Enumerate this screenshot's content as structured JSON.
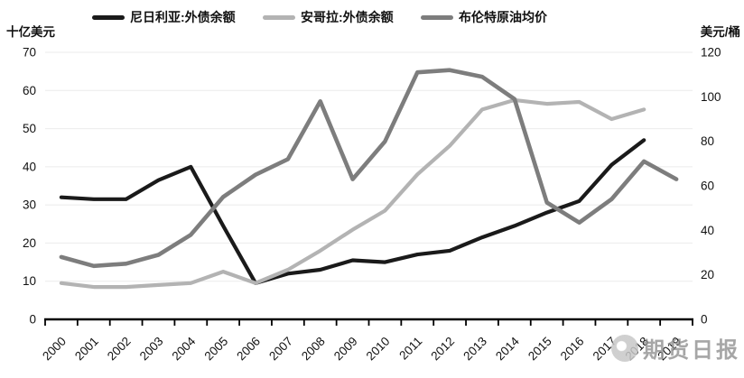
{
  "watermark": {
    "text": "期货日报"
  },
  "chart_data": {
    "type": "line",
    "title": "",
    "x": [
      2000,
      2001,
      2002,
      2003,
      2004,
      2005,
      2006,
      2007,
      2008,
      2009,
      2010,
      2011,
      2012,
      2013,
      2014,
      2015,
      2016,
      2017,
      2018,
      2019
    ],
    "left_axis": {
      "title": "十亿美元",
      "range": [
        0,
        70
      ],
      "tick_step": 10,
      "ticks": [
        0,
        10,
        20,
        30,
        40,
        50,
        60,
        70
      ]
    },
    "right_axis": {
      "title": "美元/桶",
      "range": [
        0,
        120
      ],
      "tick_step": 20,
      "ticks": [
        0,
        20,
        40,
        60,
        80,
        100,
        120
      ]
    },
    "grid": "horizontal",
    "legend_position": "top",
    "series": [
      {
        "name": "尼日利亚:外债余额",
        "axis": "left",
        "color": "#1a1a1a",
        "width": 4.2,
        "values": [
          32,
          31.5,
          31.5,
          36.5,
          40,
          24.5,
          9.5,
          12,
          13,
          15.5,
          15,
          17,
          18,
          21.5,
          24.5,
          28,
          31,
          40.5,
          47,
          null
        ]
      },
      {
        "name": "安哥拉:外债余额",
        "axis": "left",
        "color": "#b3b3b3",
        "width": 4.2,
        "values": [
          9.5,
          8.5,
          8.5,
          9,
          9.5,
          12.5,
          9.5,
          13,
          18,
          23.5,
          28.5,
          38,
          45.5,
          55,
          57.5,
          56.5,
          57,
          52.5,
          55,
          null
        ]
      },
      {
        "name": "布伦特原油均价",
        "axis": "right",
        "color": "#7d7d7d",
        "width": 4.6,
        "values": [
          28,
          24,
          25,
          29,
          38,
          55,
          65,
          72,
          98,
          63,
          80,
          111,
          112,
          109,
          99,
          52.5,
          43.5,
          54,
          71,
          63
        ]
      }
    ]
  }
}
